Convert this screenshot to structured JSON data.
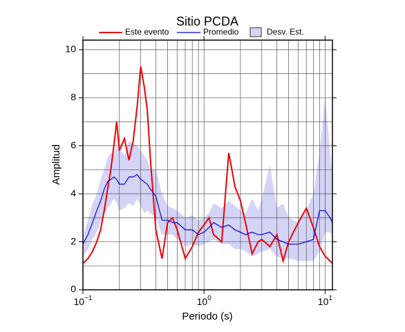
{
  "chart_data": {
    "type": "line",
    "title": "Sitio PCDA",
    "xlabel": "Periodo (s)",
    "ylabel": "Amplitud",
    "xscale": "log",
    "xlim": [
      0.1,
      11.5
    ],
    "ylim": [
      0,
      10.4
    ],
    "xticks": [
      {
        "value": 0.1,
        "label": "10",
        "exponent": "−1"
      },
      {
        "value": 1,
        "label": "10",
        "exponent": "0"
      },
      {
        "value": 10,
        "label": "10",
        "exponent": "1"
      }
    ],
    "yticks": [
      0,
      2,
      4,
      6,
      8,
      10
    ],
    "xgrid": [
      0.2,
      0.3,
      0.4,
      0.5,
      0.6,
      0.7,
      0.8,
      0.9,
      1,
      2,
      3,
      4,
      5,
      6,
      7,
      8,
      9,
      10
    ],
    "ygrid": [
      1,
      2,
      3,
      4,
      5,
      6,
      7,
      8,
      9,
      10
    ],
    "x": [
      0.1,
      0.11,
      0.12,
      0.13,
      0.14,
      0.15,
      0.16,
      0.17,
      0.18,
      0.19,
      0.2,
      0.22,
      0.24,
      0.26,
      0.28,
      0.3,
      0.32,
      0.34,
      0.36,
      0.4,
      0.45,
      0.5,
      0.55,
      0.6,
      0.7,
      0.8,
      0.9,
      1.0,
      1.1,
      1.2,
      1.4,
      1.6,
      1.7,
      1.8,
      2.0,
      2.2,
      2.5,
      2.8,
      3.0,
      3.5,
      4.0,
      4.5,
      5,
      6,
      7,
      8,
      9,
      10,
      11,
      11.5
    ],
    "band": {
      "name": "Desv. Est.",
      "color": "#d4d4f7",
      "lower": [
        1.4,
        1.7,
        2.1,
        2.4,
        2.8,
        3.2,
        3.4,
        3.6,
        3.8,
        3.6,
        3.3,
        3.4,
        3.6,
        3.5,
        3.8,
        3.5,
        3.2,
        3.3,
        3.2,
        3.0,
        2.3,
        2.3,
        2.3,
        2.1,
        1.8,
        1.9,
        1.8,
        1.9,
        2.0,
        2.1,
        1.9,
        1.9,
        1.8,
        1.7,
        1.7,
        1.6,
        1.4,
        1.5,
        1.6,
        1.7,
        1.4,
        1.3,
        1.3,
        1.2,
        1.2,
        1.2,
        1.6,
        2.4,
        2.4,
        2.3
      ],
      "upper": [
        2.2,
        2.9,
        3.6,
        4.0,
        4.6,
        5.0,
        5.5,
        5.7,
        5.7,
        5.9,
        5.9,
        5.6,
        6.2,
        6.1,
        6.0,
        5.8,
        5.6,
        5.4,
        5.0,
        5.0,
        4.0,
        3.5,
        3.4,
        3.3,
        3.0,
        3.1,
        2.9,
        3.0,
        3.2,
        3.6,
        3.4,
        3.7,
        3.6,
        3.5,
        3.3,
        3.2,
        3.8,
        3.3,
        3.8,
        5.2,
        3.4,
        3.6,
        3.0,
        2.8,
        3.3,
        4.0,
        5.7,
        8.0,
        5.8,
        4.8
      ]
    },
    "series": [
      {
        "name": "Este evento",
        "color": "#ee0000",
        "width": 2,
        "values": [
          1.1,
          1.3,
          1.6,
          2.0,
          2.5,
          3.3,
          4.2,
          5.0,
          6.0,
          7.0,
          5.8,
          6.3,
          5.4,
          6.2,
          7.6,
          9.3,
          8.5,
          7.5,
          5.5,
          2.5,
          1.3,
          2.8,
          3.0,
          2.5,
          1.3,
          1.8,
          2.4,
          2.7,
          3.0,
          2.3,
          2.0,
          5.7,
          5.0,
          4.3,
          3.7,
          2.8,
          1.5,
          2.0,
          2.1,
          1.8,
          2.3,
          1.2,
          2.0,
          2.8,
          3.4,
          2.6,
          1.8,
          1.4,
          1.2,
          1.1
        ]
      },
      {
        "name": "Promedio",
        "color": "#0000dd",
        "width": 1.2,
        "values": [
          1.9,
          2.3,
          2.8,
          3.3,
          3.7,
          4.2,
          4.5,
          4.6,
          4.7,
          4.6,
          4.4,
          4.4,
          4.7,
          4.7,
          4.8,
          4.6,
          4.5,
          4.4,
          4.2,
          3.9,
          2.9,
          2.9,
          2.8,
          2.8,
          2.5,
          2.5,
          2.3,
          2.4,
          2.6,
          2.8,
          2.6,
          2.7,
          2.6,
          2.5,
          2.4,
          2.3,
          2.4,
          2.3,
          2.3,
          2.4,
          2.1,
          2.0,
          1.9,
          1.9,
          2.0,
          2.1,
          3.3,
          3.3,
          3.0,
          2.8
        ]
      }
    ]
  }
}
